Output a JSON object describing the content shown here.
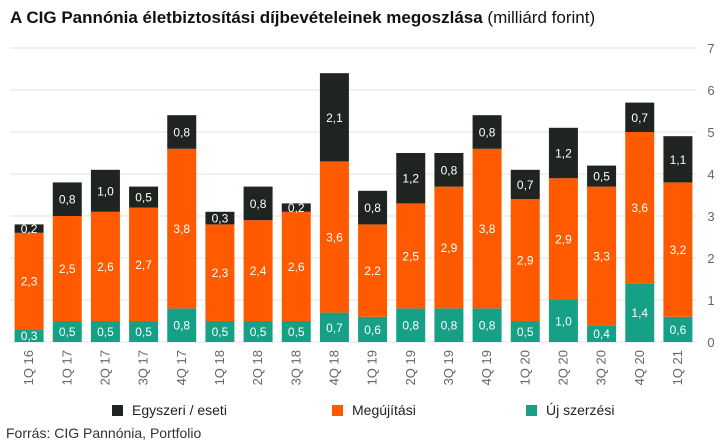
{
  "title_bold": "A CIG Pannónia életbiztosítási díjbevételeinek megoszlása",
  "title_normal": "(milliárd forint)",
  "source": "Forrás: CIG Pannónia, Portfolio",
  "colors": {
    "one_time": "#1f2421",
    "renewal": "#ff5a00",
    "new": "#16a085",
    "grid": "#e3e3e3",
    "axis_text": "#666666"
  },
  "legend": [
    {
      "label": "Egyszeri / eseti",
      "series": "one_time"
    },
    {
      "label": "Megújítási",
      "series": "renewal"
    },
    {
      "label": "Új szerzési",
      "series": "new"
    }
  ],
  "chart_data": {
    "type": "bar",
    "stacked": true,
    "categories": [
      "1Q 16",
      "1Q 17",
      "2Q 17",
      "3Q 17",
      "4Q 17",
      "1Q 18",
      "2Q 18",
      "3Q 18",
      "4Q 18",
      "1Q 19",
      "2Q 19",
      "3Q 19",
      "4Q 19",
      "1Q 20",
      "2Q 20",
      "3Q 20",
      "4Q 20",
      "1Q 21"
    ],
    "series": [
      {
        "name": "Új szerzési",
        "key": "new",
        "values": [
          0.3,
          0.5,
          0.5,
          0.5,
          0.8,
          0.5,
          0.5,
          0.5,
          0.7,
          0.6,
          0.8,
          0.8,
          0.8,
          0.5,
          1.0,
          0.4,
          1.4,
          0.6
        ],
        "labels": [
          "0,3",
          "0,5",
          "0,5",
          "0,5",
          "0,8",
          "0,5",
          "0,5",
          "0,5",
          "0,7",
          "0,6",
          "0,8",
          "0,8",
          "0,8",
          "0,5",
          "1,0",
          "0,4",
          "1,4",
          "0,6"
        ]
      },
      {
        "name": "Megújítási",
        "key": "renewal",
        "values": [
          2.3,
          2.5,
          2.6,
          2.7,
          3.8,
          2.3,
          2.4,
          2.6,
          3.6,
          2.2,
          2.5,
          2.9,
          3.8,
          2.9,
          2.9,
          3.3,
          3.6,
          3.2
        ],
        "labels": [
          "2,3",
          "2,5",
          "2,6",
          "2,7",
          "3,8",
          "2,3",
          "2,4",
          "2,6",
          "3,6",
          "2,2",
          "2,5",
          "2,9",
          "3,8",
          "2,9",
          "2,9",
          "3,3",
          "3,6",
          "3,2"
        ]
      },
      {
        "name": "Egyszeri / eseti",
        "key": "one_time",
        "values": [
          0.2,
          0.8,
          1.0,
          0.5,
          0.8,
          0.3,
          0.8,
          0.2,
          2.1,
          0.8,
          1.2,
          0.8,
          0.8,
          0.7,
          1.2,
          0.5,
          0.7,
          1.1
        ],
        "labels": [
          "0,2",
          "0,8",
          "1,0",
          "0,5",
          "0,8",
          "0,3",
          "0,8",
          "0,2",
          "2,1",
          "0,8",
          "1,2",
          "0,8",
          "0,8",
          "0,7",
          "1,2",
          "0,5",
          "0,7",
          "1,1"
        ]
      }
    ],
    "y_ticks": [
      "0",
      "1",
      "2",
      "3",
      "4",
      "5",
      "6",
      "7"
    ],
    "ylim": [
      0,
      7
    ],
    "y_axis_side": "right",
    "grid": true,
    "legend_position": "bottom"
  }
}
